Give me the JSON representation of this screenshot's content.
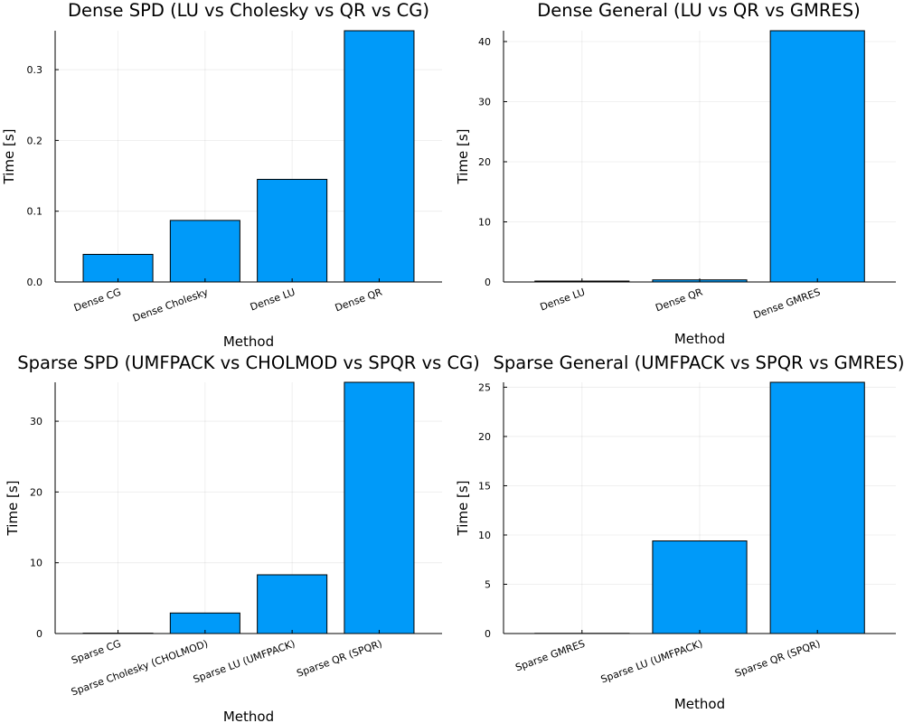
{
  "bar_color": "#009af9",
  "chart_data": [
    {
      "type": "bar",
      "title": "Dense SPD (LU vs Cholesky vs QR vs CG)",
      "xlabel": "Method",
      "ylabel": "Time [s]",
      "categories": [
        "Dense CG",
        "Dense Cholesky",
        "Dense LU",
        "Dense QR"
      ],
      "values": [
        0.039,
        0.087,
        0.145,
        0.355
      ],
      "ylim": [
        0,
        0.355
      ],
      "yticks": [
        0,
        0.1,
        0.2,
        0.3
      ],
      "ytick_labels": [
        "0.0",
        "0.1",
        "0.2",
        "0.3"
      ],
      "grid": true,
      "legend": "none"
    },
    {
      "type": "bar",
      "title": "Dense General (LU vs QR vs GMRES)",
      "xlabel": "Method",
      "ylabel": "Time [s]",
      "categories": [
        "Dense LU",
        "Dense QR",
        "Dense GMRES"
      ],
      "values": [
        0.15,
        0.35,
        41.8
      ],
      "ylim": [
        0,
        41.8
      ],
      "yticks": [
        0,
        10,
        20,
        30,
        40
      ],
      "ytick_labels": [
        "0",
        "10",
        "20",
        "30",
        "40"
      ],
      "grid": true,
      "legend": "none"
    },
    {
      "type": "bar",
      "title": "Sparse SPD (UMFPACK vs CHOLMOD vs SPQR vs CG)",
      "xlabel": "Method",
      "ylabel": "Time [s]",
      "categories": [
        "Sparse CG",
        "Sparse Cholesky (CHOLMOD)",
        "Sparse LU (UMFPACK)",
        "Sparse QR (SPQR)"
      ],
      "values": [
        0.05,
        2.9,
        8.3,
        35.5
      ],
      "ylim": [
        0,
        35.5
      ],
      "yticks": [
        0,
        10,
        20,
        30
      ],
      "ytick_labels": [
        "0",
        "10",
        "20",
        "30"
      ],
      "grid": true,
      "legend": "none"
    },
    {
      "type": "bar",
      "title": "Sparse General (UMFPACK vs SPQR vs GMRES)",
      "xlabel": "Method",
      "ylabel": "Time [s]",
      "categories": [
        "Sparse GMRES",
        "Sparse LU (UMFPACK)",
        "Sparse QR (SPQR)"
      ],
      "values": [
        0.02,
        9.4,
        25.5
      ],
      "ylim": [
        0,
        25.5
      ],
      "yticks": [
        0,
        5,
        10,
        15,
        20,
        25
      ],
      "ytick_labels": [
        "0",
        "5",
        "10",
        "15",
        "20",
        "25"
      ],
      "grid": true,
      "legend": "none"
    }
  ]
}
